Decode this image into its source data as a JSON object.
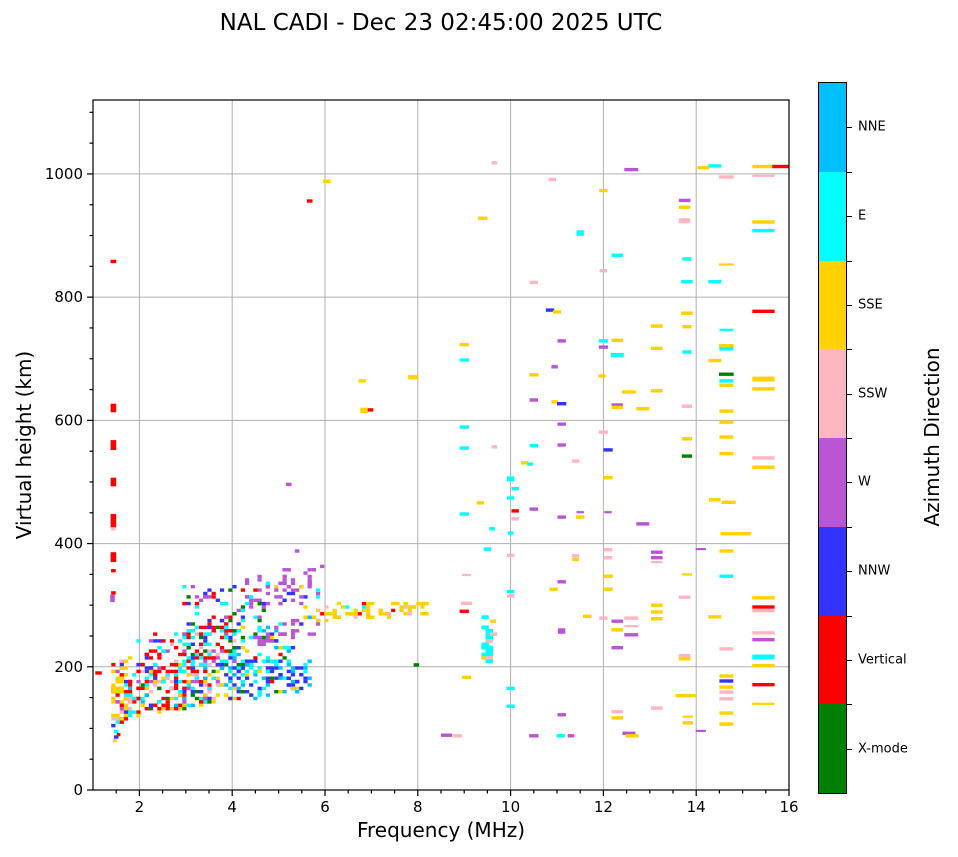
{
  "header": {
    "title": "NAL CADI - Dec 23 02:45:00 2025 UTC"
  },
  "chart_data": {
    "type": "scatter",
    "title": "NAL CADI - Dec 23 02:45:00 2025 UTC",
    "xlabel": "Frequency (MHz)",
    "ylabel": "Virtual height (km)",
    "xlim": [
      1,
      16
    ],
    "ylim": [
      0,
      1120
    ],
    "xticks": [
      2,
      4,
      6,
      8,
      10,
      12,
      14,
      16
    ],
    "yticks": [
      0,
      200,
      400,
      600,
      800,
      1000
    ],
    "x_minor_step": 0.5,
    "y_minor_step": 50,
    "grid": true,
    "grid_color": "#b0b0b0",
    "colorbar": {
      "label": "Azimuth Direction",
      "categories_bottom_to_top": [
        "X-mode",
        "Vertical",
        "NNW",
        "W",
        "SSW",
        "SSE",
        "E",
        "NNE"
      ]
    },
    "colors": {
      "NNE": "#00BFFF",
      "E": "#00FFFF",
      "SSE": "#FFD200",
      "SSW": "#FFB6C1",
      "W": "#BA55D3",
      "NNW": "#3333FF",
      "Vertical": "#FF0000",
      "X-mode": "#008000"
    },
    "point_format": "[freq_MHz, height_km, direction, width_MHz, thickness_km(optional)]",
    "points": [
      [
        1.44,
        858,
        "Vertical",
        0.12
      ],
      [
        1.44,
        620,
        "Vertical",
        0.12,
        14
      ],
      [
        1.44,
        560,
        "Vertical",
        0.12,
        16
      ],
      [
        1.44,
        500,
        "Vertical",
        0.12,
        14
      ],
      [
        1.44,
        437,
        "Vertical",
        0.12,
        22
      ],
      [
        1.44,
        424,
        "SSW",
        0.1
      ],
      [
        1.44,
        378,
        "Vertical",
        0.12,
        16
      ],
      [
        1.44,
        356,
        "Vertical",
        0.1
      ],
      [
        1.42,
        311,
        "W",
        0.1,
        12
      ],
      [
        1.44,
        320,
        "Vertical",
        0.1
      ],
      [
        1.12,
        190,
        "Vertical",
        0.14
      ],
      [
        1.5,
        95,
        "E",
        0.1
      ],
      [
        1.5,
        86,
        "NNW",
        0.1
      ],
      [
        1.55,
        90,
        "Vertical",
        0.08
      ],
      [
        1.47,
        80,
        "SSE",
        0.08
      ],
      [
        5.22,
        496,
        "W",
        0.12
      ],
      [
        5.4,
        388,
        "W",
        0.1
      ],
      [
        5.67,
        956,
        "Vertical",
        0.12
      ],
      [
        6.04,
        988,
        "SSE",
        0.16
      ],
      [
        6.84,
        616,
        "SSE",
        0.16,
        9
      ],
      [
        6.98,
        617,
        "Vertical",
        0.12
      ],
      [
        6.8,
        664,
        "SSE",
        0.16
      ],
      [
        7.9,
        670,
        "SSE",
        0.22,
        7
      ],
      [
        7.97,
        203,
        "X-mode",
        0.12
      ],
      [
        8.62,
        89,
        "W",
        0.24
      ],
      [
        8.85,
        88,
        "SSW",
        0.2
      ],
      [
        9.0,
        723,
        "SSE",
        0.2
      ],
      [
        9.0,
        698,
        "E",
        0.2
      ],
      [
        9.0,
        589,
        "E",
        0.2
      ],
      [
        9.0,
        555,
        "E",
        0.2
      ],
      [
        9.0,
        448,
        "E",
        0.2
      ],
      [
        9.05,
        349,
        "SSW",
        0.2,
        3.5
      ],
      [
        9.05,
        303,
        "SSW",
        0.24
      ],
      [
        9.0,
        290,
        "Vertical",
        0.2
      ],
      [
        9.05,
        183,
        "SSE",
        0.2
      ],
      [
        9.35,
        466,
        "SSE",
        0.16
      ],
      [
        9.4,
        928,
        "SSE",
        0.2
      ],
      [
        9.65,
        1018,
        "SSW",
        0.12
      ],
      [
        9.65,
        557,
        "SSW",
        0.12
      ],
      [
        9.5,
        391,
        "E",
        0.16
      ],
      [
        9.6,
        424,
        "E",
        0.12
      ],
      [
        9.62,
        274,
        "SSE",
        0.12
      ],
      [
        10.0,
        505,
        "E",
        0.16,
        8
      ],
      [
        10.1,
        489,
        "E",
        0.16
      ],
      [
        10.0,
        474,
        "E",
        0.16
      ],
      [
        10.1,
        453,
        "Vertical",
        0.16
      ],
      [
        10.1,
        440,
        "SSW",
        0.16
      ],
      [
        10.0,
        417,
        "E",
        0.12
      ],
      [
        10.0,
        381,
        "SSW",
        0.16
      ],
      [
        10.0,
        322,
        "E",
        0.16
      ],
      [
        10.0,
        315,
        "SSW",
        0.16
      ],
      [
        10.0,
        165,
        "E",
        0.18
      ],
      [
        10.0,
        136,
        "E",
        0.18
      ],
      [
        10.3,
        531,
        "SSE",
        0.16
      ],
      [
        10.42,
        529,
        "E",
        0.12
      ],
      [
        10.5,
        824,
        "SSW",
        0.18
      ],
      [
        10.5,
        674,
        "SSE",
        0.2
      ],
      [
        10.5,
        633,
        "W",
        0.18
      ],
      [
        10.5,
        559,
        "E",
        0.18
      ],
      [
        10.5,
        456,
        "W",
        0.18
      ],
      [
        10.5,
        88,
        "W",
        0.2
      ],
      [
        10.9,
        991,
        "SSW",
        0.16
      ],
      [
        10.85,
        779,
        "NNW",
        0.18
      ],
      [
        11.0,
        776,
        "SSE",
        0.18
      ],
      [
        10.95,
        687,
        "W",
        0.14
      ],
      [
        10.95,
        630,
        "SSE",
        0.14
      ],
      [
        11.1,
        729,
        "W",
        0.18
      ],
      [
        11.1,
        627,
        "NNW",
        0.2
      ],
      [
        11.1,
        594,
        "W",
        0.18
      ],
      [
        11.1,
        560,
        "W",
        0.18
      ],
      [
        11.1,
        443,
        "W",
        0.18
      ],
      [
        11.5,
        443,
        "SSE",
        0.18
      ],
      [
        11.5,
        451,
        "W",
        0.16,
        3.5
      ],
      [
        11.5,
        904,
        "E",
        0.16,
        9
      ],
      [
        11.4,
        534,
        "SSW",
        0.16
      ],
      [
        11.4,
        380,
        "SSW",
        0.16
      ],
      [
        11.4,
        374,
        "SSE",
        0.14
      ],
      [
        11.1,
        338,
        "W",
        0.18
      ],
      [
        10.93,
        326,
        "SSE",
        0.18
      ],
      [
        11.1,
        258,
        "W",
        0.16,
        9
      ],
      [
        11.1,
        122,
        "W",
        0.18
      ],
      [
        11.08,
        88,
        "E",
        0.18
      ],
      [
        11.3,
        88,
        "W",
        0.14
      ],
      [
        11.65,
        282,
        "SSE",
        0.18
      ],
      [
        12.0,
        973,
        "SSE",
        0.18
      ],
      [
        12.0,
        843,
        "SSW",
        0.16
      ],
      [
        12.0,
        729,
        "E",
        0.2
      ],
      [
        12.0,
        719,
        "W",
        0.2
      ],
      [
        11.97,
        672,
        "SSE",
        0.16
      ],
      [
        12.0,
        581,
        "SSW",
        0.2
      ],
      [
        12.1,
        552,
        "NNW",
        0.2
      ],
      [
        12.1,
        507,
        "SSE",
        0.2
      ],
      [
        12.1,
        451,
        "W",
        0.16,
        3.5
      ],
      [
        12.1,
        390,
        "SSW",
        0.18
      ],
      [
        12.1,
        377,
        "SSW",
        0.18
      ],
      [
        12.1,
        347,
        "SSE",
        0.2
      ],
      [
        12.1,
        326,
        "SSE",
        0.2
      ],
      [
        12.0,
        279,
        "SSW",
        0.18
      ],
      [
        12.3,
        868,
        "E",
        0.25
      ],
      [
        12.3,
        730,
        "SSE",
        0.25
      ],
      [
        12.3,
        706,
        "E",
        0.28,
        7
      ],
      [
        12.3,
        625,
        "W",
        0.25
      ],
      [
        12.3,
        621,
        "SSE",
        0.25
      ],
      [
        12.3,
        274,
        "W",
        0.25
      ],
      [
        12.3,
        260,
        "SSE",
        0.25
      ],
      [
        12.3,
        231,
        "W",
        0.25
      ],
      [
        12.3,
        127,
        "SSW",
        0.25
      ],
      [
        12.3,
        117,
        "SSE",
        0.25
      ],
      [
        12.55,
        646,
        "SSE",
        0.3
      ],
      [
        12.6,
        1007,
        "W",
        0.3
      ],
      [
        12.6,
        279,
        "SSW",
        0.3
      ],
      [
        12.6,
        266,
        "SSW",
        0.3,
        3.5
      ],
      [
        12.6,
        252,
        "W",
        0.3
      ],
      [
        12.55,
        92,
        "W",
        0.28
      ],
      [
        12.62,
        88,
        "SSE",
        0.28
      ],
      [
        12.85,
        619,
        "SSE",
        0.28
      ],
      [
        12.85,
        432,
        "W",
        0.28
      ],
      [
        13.15,
        753,
        "SSE",
        0.25
      ],
      [
        13.15,
        717,
        "SSE",
        0.25
      ],
      [
        13.15,
        648,
        "SSE",
        0.25
      ],
      [
        13.15,
        386,
        "W",
        0.25
      ],
      [
        13.15,
        377,
        "W",
        0.25
      ],
      [
        13.15,
        370,
        "SSW",
        0.25,
        3.5
      ],
      [
        13.15,
        300,
        "SSE",
        0.25
      ],
      [
        13.15,
        289,
        "SSE",
        0.25
      ],
      [
        13.15,
        278,
        "SSE",
        0.25
      ],
      [
        13.15,
        133,
        "SSW",
        0.25
      ],
      [
        13.75,
        957,
        "W",
        0.25
      ],
      [
        13.75,
        946,
        "SSE",
        0.25
      ],
      [
        13.75,
        924,
        "SSW",
        0.25,
        8
      ],
      [
        13.8,
        862,
        "E",
        0.2
      ],
      [
        13.8,
        825,
        "E",
        0.25
      ],
      [
        13.8,
        774,
        "SSE",
        0.25
      ],
      [
        13.8,
        752,
        "SSE",
        0.2
      ],
      [
        13.8,
        711,
        "E",
        0.2
      ],
      [
        13.8,
        623,
        "SSW",
        0.22
      ],
      [
        13.8,
        570,
        "SSE",
        0.22
      ],
      [
        13.8,
        542,
        "X-mode",
        0.22
      ],
      [
        13.8,
        350,
        "SSE",
        0.22,
        3.5
      ],
      [
        13.75,
        313,
        "SSW",
        0.25
      ],
      [
        13.75,
        218,
        "SSW",
        0.25
      ],
      [
        13.75,
        213,
        "SSE",
        0.25
      ],
      [
        13.78,
        153,
        "SSE",
        0.45
      ],
      [
        13.82,
        119,
        "SSE",
        0.22,
        3.5
      ],
      [
        13.82,
        109,
        "SSE",
        0.22
      ],
      [
        14.1,
        391,
        "W",
        0.22,
        3.5
      ],
      [
        14.1,
        96,
        "W",
        0.22,
        3.5
      ],
      [
        14.15,
        1010,
        "SSE",
        0.25
      ],
      [
        14.4,
        1013,
        "E",
        0.28
      ],
      [
        14.4,
        825,
        "E",
        0.28
      ],
      [
        14.4,
        697,
        "SSE",
        0.28
      ],
      [
        14.4,
        471,
        "SSE",
        0.25
      ],
      [
        14.4,
        281,
        "SSE",
        0.28
      ],
      [
        14.65,
        995,
        "SSW",
        0.32
      ],
      [
        14.65,
        853,
        "SSE",
        0.32,
        3.5
      ],
      [
        14.65,
        747,
        "E",
        0.3,
        3.5
      ],
      [
        14.65,
        721,
        "SSE",
        0.32
      ],
      [
        14.65,
        716,
        "E",
        0.3
      ],
      [
        14.65,
        675,
        "X-mode",
        0.32
      ],
      [
        14.65,
        664,
        "E",
        0.3
      ],
      [
        14.65,
        657,
        "SSE",
        0.3
      ],
      [
        14.65,
        615,
        "SSE",
        0.3
      ],
      [
        14.65,
        597,
        "SSE",
        0.3
      ],
      [
        14.65,
        573,
        "SSE",
        0.3
      ],
      [
        14.65,
        546,
        "SSE",
        0.3
      ],
      [
        14.7,
        467,
        "SSE",
        0.3
      ],
      [
        14.85,
        416,
        "SSE",
        0.65
      ],
      [
        14.65,
        388,
        "SSE",
        0.3
      ],
      [
        14.65,
        347,
        "E",
        0.3
      ],
      [
        14.65,
        229,
        "SSW",
        0.3
      ],
      [
        14.65,
        185,
        "SSE",
        0.3
      ],
      [
        14.65,
        177,
        "NNW",
        0.3
      ],
      [
        14.65,
        167,
        "SSE",
        0.3
      ],
      [
        14.65,
        159,
        "SSW",
        0.3
      ],
      [
        14.65,
        148,
        "SSW",
        0.3
      ],
      [
        14.65,
        125,
        "SSE",
        0.3
      ],
      [
        14.65,
        107,
        "SSE",
        0.3
      ],
      [
        15.45,
        1012,
        "SSE",
        0.48
      ],
      [
        15.85,
        1012,
        "Vertical",
        0.42
      ],
      [
        15.45,
        997,
        "SSW",
        0.48,
        3.5
      ],
      [
        15.45,
        922,
        "SSE",
        0.48
      ],
      [
        15.45,
        908,
        "E",
        0.48
      ],
      [
        15.45,
        777,
        "Vertical",
        0.48
      ],
      [
        15.45,
        667,
        "SSE",
        0.48,
        8
      ],
      [
        15.45,
        651,
        "SSE",
        0.48
      ],
      [
        15.45,
        539,
        "SSW",
        0.48
      ],
      [
        15.45,
        524,
        "SSE",
        0.48
      ],
      [
        15.45,
        312,
        "SSE",
        0.48
      ],
      [
        15.45,
        297,
        "Vertical",
        0.48
      ],
      [
        15.45,
        291,
        "SSW",
        0.48
      ],
      [
        15.45,
        255,
        "SSW",
        0.48
      ],
      [
        15.45,
        244,
        "W",
        0.48
      ],
      [
        15.45,
        216,
        "E",
        0.48,
        8
      ],
      [
        15.45,
        202,
        "SSE",
        0.48
      ],
      [
        15.45,
        171,
        "Vertical",
        0.48
      ],
      [
        15.45,
        140,
        "SSE",
        0.48,
        3.5
      ]
    ],
    "cluster_format": "procedural dense echo regions: n cells, f range, height band h0(at fmin)->h1(at fmax), color weights",
    "clusters": [
      {
        "name": "left-column",
        "seed": 11,
        "n": 90,
        "f": [
          1.42,
          1.8
        ],
        "h0": [
          95,
          210
        ],
        "h1": [
          120,
          215
        ],
        "colors": {
          "SSE": 0.42,
          "Vertical": 0.26,
          "E": 0.12,
          "SSW": 0.09,
          "W": 0.06,
          "NNW": 0.05
        }
      },
      {
        "name": "low-band",
        "seed": 22,
        "n": 210,
        "f": [
          1.75,
          3.7
        ],
        "h0": [
          118,
          205
        ],
        "h1": [
          140,
          215
        ],
        "colors": {
          "Vertical": 0.28,
          "SSE": 0.2,
          "E": 0.17,
          "NNE": 0.05,
          "SSW": 0.1,
          "X-mode": 0.07,
          "NNW": 0.07,
          "W": 0.06
        }
      },
      {
        "name": "red-diagonal",
        "seed": 33,
        "n": 110,
        "f": [
          1.95,
          4.1
        ],
        "h0": [
          170,
          245
        ],
        "h1": [
          205,
          285
        ],
        "colors": {
          "Vertical": 0.46,
          "E": 0.18,
          "X-mode": 0.12,
          "NNW": 0.12,
          "W": 0.07,
          "SSW": 0.05
        }
      },
      {
        "name": "blue-e-region-band",
        "seed": 44,
        "n": 130,
        "f": [
          3.75,
          5.65
        ],
        "h0": [
          142,
          205
        ],
        "h1": [
          160,
          212
        ],
        "colors": {
          "NNW": 0.42,
          "NNE": 0.25,
          "E": 0.18,
          "SSE": 0.05,
          "Vertical": 0.05,
          "X-mode": 0.05
        }
      },
      {
        "name": "cyan-mid",
        "seed": 55,
        "n": 95,
        "f": [
          2.9,
          5.3
        ],
        "h0": [
          195,
          262
        ],
        "h1": [
          205,
          272
        ],
        "colors": {
          "E": 0.42,
          "NNE": 0.12,
          "NNW": 0.14,
          "Vertical": 0.11,
          "X-mode": 0.11,
          "W": 0.05,
          "SSE": 0.05
        }
      },
      {
        "name": "purple-streak",
        "seed": 66,
        "n": 40,
        "f": [
          4.5,
          5.9
        ],
        "h0": [
          235,
          262
        ],
        "h1": [
          255,
          285
        ],
        "colors": {
          "W": 0.75,
          "NNE": 0.1,
          "NNW": 0.15
        }
      },
      {
        "name": "purple-patch",
        "seed": 77,
        "n": 65,
        "f": [
          4.3,
          5.95
        ],
        "h0": [
          292,
          348
        ],
        "h1": [
          308,
          372
        ],
        "colors": {
          "W": 0.74,
          "NNW": 0.1,
          "E": 0.1,
          "SSE": 0.06
        }
      },
      {
        "name": "gold-f-band",
        "seed": 88,
        "n": 75,
        "f": [
          5.55,
          8.25
        ],
        "h0": [
          272,
          300
        ],
        "h1": [
          286,
          306
        ],
        "colors": {
          "SSE": 0.84,
          "E": 0.06,
          "Vertical": 0.05,
          "SSW": 0.05
        }
      },
      {
        "name": "upper-sparse",
        "seed": 99,
        "n": 55,
        "f": [
          2.95,
          4.65
        ],
        "h0": [
          245,
          330
        ],
        "h1": [
          265,
          345
        ],
        "colors": {
          "X-mode": 0.24,
          "W": 0.24,
          "NNW": 0.2,
          "E": 0.16,
          "Vertical": 0.16
        }
      },
      {
        "name": "cyan-column",
        "seed": 7,
        "n": 20,
        "f": [
          9.42,
          9.6
        ],
        "h0": [
          208,
          280
        ],
        "h1": [
          208,
          280
        ],
        "w": 0.16,
        "t": 6,
        "colors": {
          "E": 0.78,
          "Vertical": 0.12,
          "SSW": 0.06,
          "SSE": 0.04
        }
      }
    ]
  }
}
